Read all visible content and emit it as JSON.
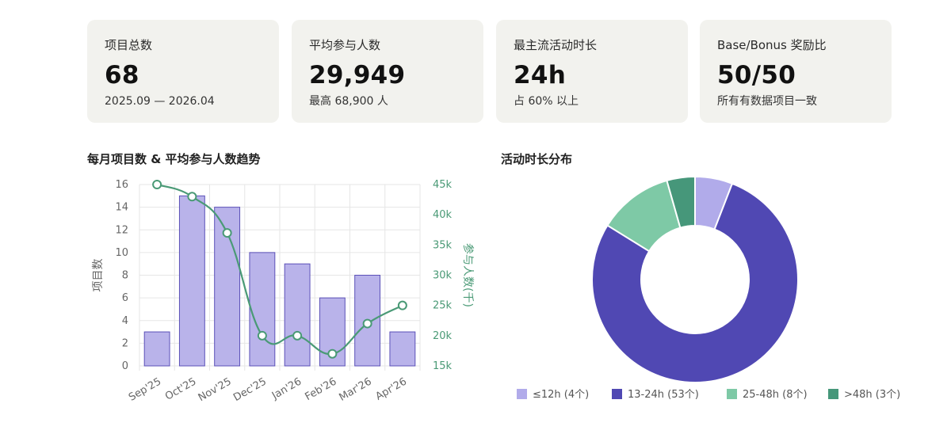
{
  "cards": [
    {
      "label": "项目总数",
      "value": "68",
      "sub": "2025.09 — 2026.04"
    },
    {
      "label": "平均参与人数",
      "value": "29,949",
      "sub": "最高 68,900 人"
    },
    {
      "label": "最主流活动时长",
      "value": "24h",
      "sub": "占 60% 以上"
    },
    {
      "label": "Base/Bonus 奖励比",
      "value": "50/50",
      "sub": "所有有数据项目一致"
    }
  ],
  "chart_data": [
    {
      "type": "bar",
      "title": "每月项目数 & 平均参与人数趋势",
      "categories": [
        "Sep'25",
        "Oct'25",
        "Nov'25",
        "Dec'25",
        "Jan'26",
        "Feb'26",
        "Mar'26",
        "Apr'26"
      ],
      "series": [
        {
          "type": "bar",
          "axis": "left",
          "values": [
            3,
            15,
            14,
            10,
            9,
            6,
            8,
            3
          ]
        },
        {
          "type": "line",
          "axis": "right",
          "values": [
            45,
            43,
            37,
            20,
            20,
            17,
            22,
            25
          ]
        }
      ],
      "ylabel": "项目数",
      "ylabel_right": "参与人数(千)",
      "ylim": [
        0,
        16
      ],
      "yticks": [
        "0",
        "2",
        "4",
        "6",
        "8",
        "10",
        "12",
        "14",
        "16"
      ],
      "ylim_right": [
        15,
        45
      ],
      "yticks_right": [
        "15k",
        "20k",
        "25k",
        "30k",
        "35k",
        "40k",
        "45k"
      ],
      "grid": true,
      "colors": {
        "bar_fill": "#b9b3ea",
        "bar_stroke": "#5b50b8",
        "line": "#4a9a76",
        "grid": "#e6e6e6",
        "axis_text": "#666666"
      }
    },
    {
      "type": "pie",
      "title": "活动时长分布",
      "donut": true,
      "legend_position": "bottom",
      "slices": [
        {
          "label": "≤12h (4个)",
          "value": 4,
          "color": "#b1abea"
        },
        {
          "label": "13-24h (53个)",
          "value": 53,
          "color": "#5048b3"
        },
        {
          "label": "25-48h (8个)",
          "value": 8,
          "color": "#7ec9a6"
        },
        {
          "label": ">48h (3个)",
          "value": 3,
          "color": "#46977a"
        }
      ]
    }
  ]
}
